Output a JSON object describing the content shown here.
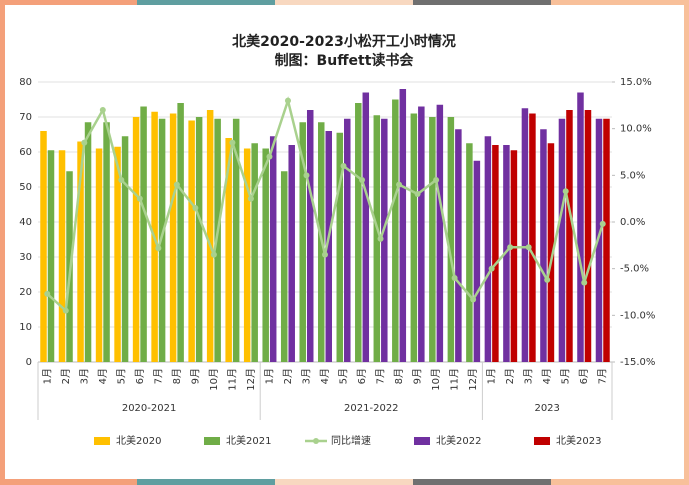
{
  "chart_data": {
    "type": "bar",
    "title": "北美2020-2023小松开工小时情况",
    "subtitle": "制图：Buffett读书会",
    "groups": [
      {
        "name": "2020-2021",
        "categories": [
          "1月",
          "2月",
          "3月",
          "4月",
          "5月",
          "6月",
          "7月",
          "8月",
          "9月",
          "10月",
          "11月",
          "12月"
        ]
      },
      {
        "name": "2021-2022",
        "categories": [
          "1月",
          "2月",
          "3月",
          "4月",
          "5月",
          "6月",
          "7月",
          "8月",
          "9月",
          "10月",
          "11月",
          "12月"
        ]
      },
      {
        "name": "2023",
        "categories": [
          "1月",
          "2月",
          "3月",
          "4月",
          "5月",
          "6月",
          "7月"
        ]
      }
    ],
    "series": [
      {
        "name": "北美2020",
        "color": "#FFC000",
        "type": "bar",
        "values": [
          66,
          60.5,
          63,
          61,
          61.5,
          70,
          71.5,
          71,
          69,
          72,
          64,
          61,
          null,
          null,
          null,
          null,
          null,
          null,
          null,
          null,
          null,
          null,
          null,
          null,
          null,
          null,
          null,
          null,
          null,
          null,
          null
        ]
      },
      {
        "name": "北美2021",
        "color": "#70AD47",
        "type": "bar",
        "values": [
          60.5,
          54.5,
          68.5,
          68.5,
          64.5,
          73,
          69.5,
          74,
          70,
          69.5,
          69.5,
          62.5,
          61,
          54.5,
          68.5,
          68.5,
          65.5,
          74,
          70.5,
          75,
          71,
          70,
          70,
          62.5,
          null,
          null,
          null,
          null,
          null,
          null,
          null
        ]
      },
      {
        "name": "同比增速",
        "color": "#A9D18E",
        "type": "line",
        "axis": "y2",
        "values": [
          -7.7,
          -9.5,
          8.5,
          12,
          4.5,
          2.5,
          -2.8,
          4,
          1.5,
          -3.5,
          8.5,
          2.5,
          7,
          13,
          5,
          -3.5,
          6,
          4.5,
          -1.8,
          4,
          3,
          4.5,
          -6,
          -8.3,
          -5,
          -2.7,
          -2.7,
          -6.2,
          3.3,
          -6.5,
          -0.2
        ]
      },
      {
        "name": "北美2022",
        "color": "#7030A0",
        "type": "bar",
        "values": [
          null,
          null,
          null,
          null,
          null,
          null,
          null,
          null,
          null,
          null,
          null,
          null,
          64.5,
          62,
          72,
          66,
          69.5,
          77,
          69.5,
          78,
          73,
          73.5,
          66.5,
          57.5,
          64.5,
          62,
          72.5,
          66.5,
          69.5,
          77,
          69.5
        ]
      },
      {
        "name": "北美2023",
        "color": "#C00000",
        "type": "bar",
        "values": [
          null,
          null,
          null,
          null,
          null,
          null,
          null,
          null,
          null,
          null,
          null,
          null,
          null,
          null,
          null,
          null,
          null,
          null,
          null,
          null,
          null,
          null,
          null,
          null,
          62,
          60.5,
          71,
          62.5,
          72,
          72,
          69.5
        ]
      }
    ],
    "ylim": [
      0,
      80
    ],
    "yticks": [
      0,
      10,
      20,
      30,
      40,
      50,
      60,
      70,
      80
    ],
    "y2lim": [
      -15,
      15
    ],
    "y2ticks": [
      {
        "value": 15,
        "label": "15.0%"
      },
      {
        "value": 10,
        "label": "10.0%"
      },
      {
        "value": 5,
        "label": "5.0%"
      },
      {
        "value": 0,
        "label": "0.0%"
      },
      {
        "value": -5,
        "label": "-5.0%"
      },
      {
        "value": -10,
        "label": "-10.0%"
      },
      {
        "value": -15,
        "label": "-15.0%"
      }
    ],
    "grid": true,
    "legend": "bottom"
  }
}
